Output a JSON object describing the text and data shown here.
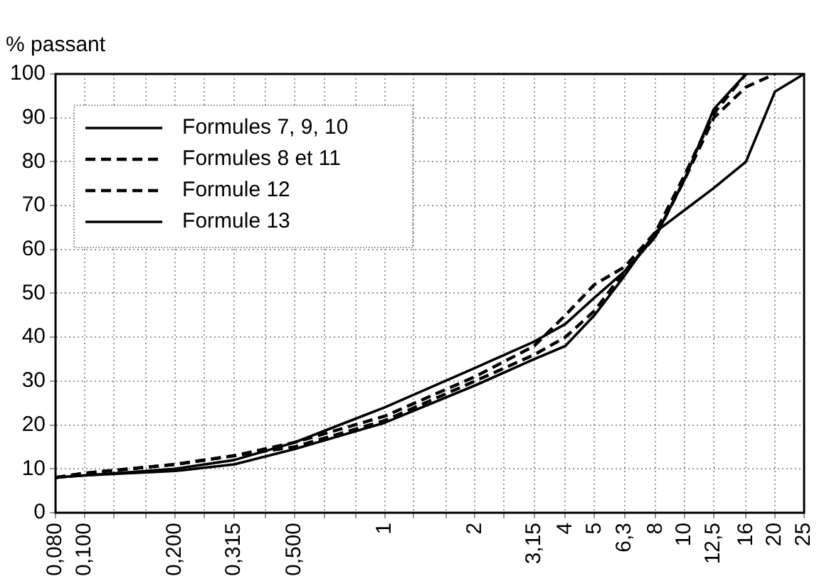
{
  "chart_data": {
    "type": "line",
    "ylabel": "% passant",
    "log": "x",
    "grid": true,
    "legend": "top left",
    "marker": "none",
    "xlim": [
      0.08,
      25
    ],
    "ylim": [
      0,
      100
    ],
    "xticks": [
      {
        "value": 0.08,
        "label": "0,080"
      },
      {
        "value": 0.1,
        "label": "0,100"
      },
      {
        "value": 0.125,
        "label": null
      },
      {
        "value": 0.16,
        "label": null
      },
      {
        "value": 0.2,
        "label": "0,200"
      },
      {
        "value": 0.25,
        "label": null
      },
      {
        "value": 0.315,
        "label": "0,315"
      },
      {
        "value": 0.4,
        "label": null
      },
      {
        "value": 0.5,
        "label": "0,500"
      },
      {
        "value": 0.63,
        "label": null
      },
      {
        "value": 0.8,
        "label": null
      },
      1,
      {
        "value": 1.25,
        "label": null
      },
      {
        "value": 1.6,
        "label": null
      },
      2,
      {
        "value": 2.5,
        "label": null
      },
      {
        "value": 3.15,
        "label": "3,15"
      },
      4,
      5,
      {
        "value": 6.3,
        "label": "6,3"
      },
      8,
      10,
      {
        "value": 12.5,
        "label": "12,5"
      },
      16,
      20,
      25
    ],
    "yticks": [
      0,
      10,
      20,
      30,
      40,
      50,
      60,
      70,
      80,
      90,
      100
    ],
    "series": [
      {
        "name": "Formules 7, 9, 10",
        "color": "#000000",
        "line_style": "solid",
        "x": [
          0.08,
          0.1,
          0.2,
          0.315,
          0.5,
          1,
          2,
          3.15,
          4,
          5,
          6.3,
          8,
          10,
          12.5,
          16
        ],
        "values": [
          8,
          8.5,
          10,
          12,
          16,
          24,
          33,
          39,
          43,
          49,
          55,
          63,
          76,
          92,
          100
        ]
      },
      {
        "name": "Formules 8 et 11",
        "color": "#000000",
        "line_style": "dashed",
        "x": [
          0.08,
          0.1,
          0.2,
          0.315,
          0.5,
          1,
          2,
          3.15,
          4,
          5,
          6.3,
          8,
          10,
          12.5,
          16,
          20
        ],
        "values": [
          8,
          9,
          11,
          13,
          15,
          21,
          30,
          36,
          40,
          46,
          55,
          63,
          76,
          90,
          97,
          100
        ]
      },
      {
        "name": "Formule 12",
        "color": "#000000",
        "line_style": "dashed",
        "x": [
          0.08,
          0.1,
          0.2,
          0.315,
          0.5,
          1,
          2,
          3.15,
          4,
          5,
          6.3,
          8,
          10,
          12.5,
          16
        ],
        "values": [
          8,
          9,
          11,
          13,
          16,
          22,
          31,
          38,
          45,
          52,
          56,
          64,
          77,
          91,
          100
        ]
      },
      {
        "name": "Formule 13",
        "color": "#000000",
        "line_style": "solid",
        "x": [
          0.08,
          0.1,
          0.2,
          0.315,
          0.5,
          1,
          2,
          3.15,
          4,
          5,
          6.3,
          8,
          10,
          12.5,
          16,
          20,
          25
        ],
        "values": [
          8,
          8.5,
          9.5,
          11,
          14.5,
          20.5,
          29,
          35,
          38,
          45,
          54,
          64,
          69,
          74,
          80,
          96,
          100
        ]
      }
    ]
  }
}
